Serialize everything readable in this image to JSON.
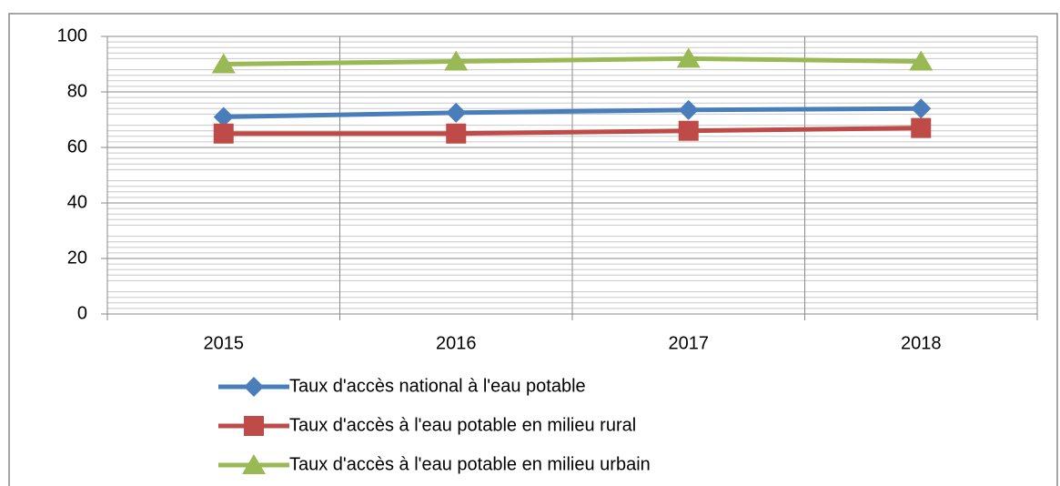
{
  "chart_data": {
    "type": "line",
    "categories": [
      "2015",
      "2016",
      "2017",
      "2018"
    ],
    "series": [
      {
        "name": "Taux d'accès national à l'eau potable",
        "color": "#4a7ebb",
        "marker": "diamond",
        "values": [
          71,
          72.5,
          73.5,
          74
        ]
      },
      {
        "name": "Taux d'accès à l'eau potable en milieu rural",
        "color": "#be4b48",
        "marker": "square",
        "values": [
          65,
          65,
          66,
          67
        ]
      },
      {
        "name": "Taux d'accès à l'eau potable en milieu urbain",
        "color": "#98b954",
        "marker": "triangle",
        "values": [
          90,
          91,
          92,
          91
        ]
      }
    ],
    "ylim": [
      0,
      100
    ],
    "yticks": [
      0,
      20,
      40,
      60,
      80,
      100
    ],
    "yminorticks": [
      2,
      4,
      6,
      8,
      12,
      14,
      16,
      18,
      22,
      24,
      26,
      28,
      32,
      34,
      36,
      38,
      42,
      44,
      46,
      48,
      52,
      54,
      56,
      58,
      62,
      64,
      66,
      68,
      72,
      74,
      76,
      78,
      82,
      84,
      86,
      88,
      92,
      94,
      96,
      98
    ],
    "grid": true,
    "legend": "bottom"
  }
}
